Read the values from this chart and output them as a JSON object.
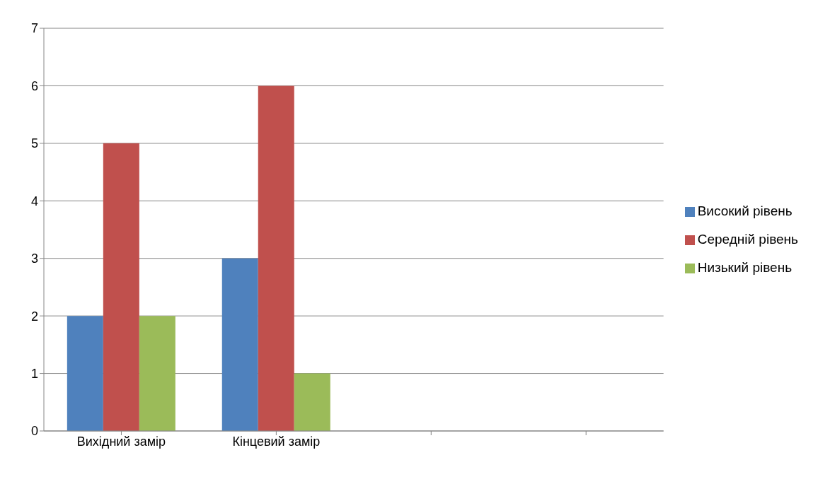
{
  "chart_data": {
    "type": "bar",
    "categories": [
      "Вихідний замір",
      "Кінцевий замір",
      null,
      null
    ],
    "series": [
      {
        "name": "Високий рівень",
        "color": "#4f81bd",
        "values": [
          2,
          3,
          null,
          null
        ]
      },
      {
        "name": "Середній рівень",
        "color": "#c0504d",
        "values": [
          5,
          6,
          null,
          null
        ]
      },
      {
        "name": "Низький рівень",
        "color": "#9bbb59",
        "values": [
          2,
          1,
          null,
          null
        ]
      }
    ],
    "ylim": [
      0,
      7
    ],
    "yticks": [
      0,
      1,
      2,
      3,
      4,
      5,
      6,
      7
    ],
    "grid": "y",
    "legend": "right"
  }
}
